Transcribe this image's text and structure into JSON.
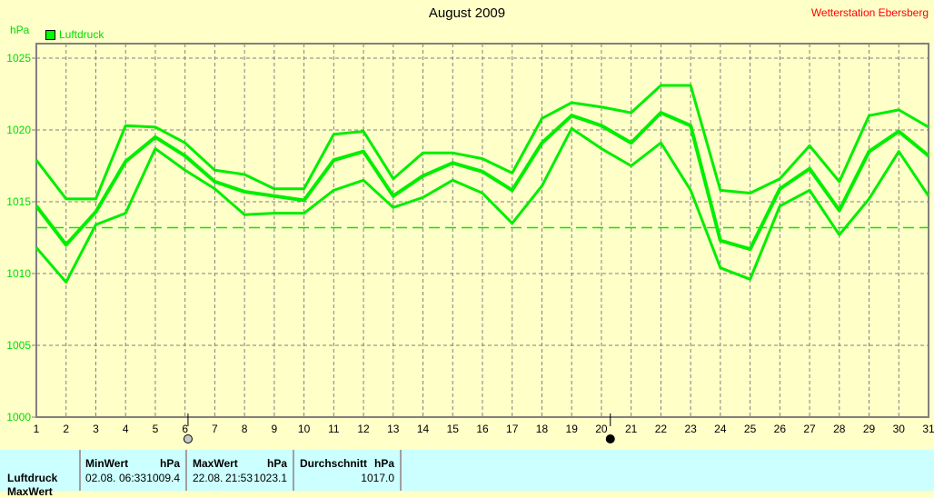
{
  "header": {
    "title": "August 2009",
    "station": "Wetterstation Ebersberg",
    "unit": "hPa",
    "legend": "Luftdruck"
  },
  "chart_data": {
    "type": "line",
    "title": "August 2009",
    "ylabel": "hPa",
    "ylim": [
      1000,
      1025
    ],
    "yticks": [
      "1000",
      "1005",
      "1010",
      "1015",
      "1020",
      "1025"
    ],
    "x": [
      1,
      2,
      3,
      4,
      5,
      6,
      7,
      8,
      9,
      10,
      11,
      12,
      13,
      14,
      15,
      16,
      17,
      18,
      19,
      20,
      21,
      22,
      23,
      24,
      25,
      26,
      27,
      28,
      29,
      30,
      31
    ],
    "series": [
      {
        "name": "Luftdruck max",
        "values": [
          1017.9,
          1015.2,
          1015.2,
          1020.3,
          1020.2,
          1019.1,
          1017.2,
          1016.9,
          1015.9,
          1015.9,
          1019.7,
          1019.9,
          1016.6,
          1018.4,
          1018.4,
          1018.0,
          1017.0,
          1020.8,
          1021.9,
          1021.6,
          1021.2,
          1023.1,
          1023.1,
          1015.8,
          1015.6,
          1016.6,
          1018.9,
          1016.4,
          1021.0,
          1021.4,
          1020.2
        ]
      },
      {
        "name": "Luftdruck avg",
        "values": [
          1014.7,
          1012.0,
          1014.3,
          1017.8,
          1019.5,
          1018.2,
          1016.4,
          1015.7,
          1015.4,
          1015.1,
          1017.9,
          1018.5,
          1015.4,
          1016.8,
          1017.7,
          1017.1,
          1015.8,
          1019.1,
          1021.0,
          1020.3,
          1019.1,
          1021.2,
          1020.3,
          1012.3,
          1011.7,
          1015.9,
          1017.3,
          1014.4,
          1018.5,
          1019.9,
          1018.2
        ]
      },
      {
        "name": "Luftdruck min",
        "values": [
          1011.8,
          1009.4,
          1013.4,
          1014.2,
          1018.7,
          1017.2,
          1015.9,
          1014.1,
          1014.2,
          1014.2,
          1015.8,
          1016.5,
          1014.6,
          1015.3,
          1016.5,
          1015.6,
          1013.5,
          1016.1,
          1020.1,
          1018.7,
          1017.5,
          1019.1,
          1015.8,
          1010.4,
          1009.6,
          1014.7,
          1015.8,
          1012.7,
          1015.2,
          1018.5,
          1015.4
        ]
      }
    ],
    "reference_line": 1013.2,
    "markers": [
      {
        "day": 6.1,
        "kind": "moon-full"
      },
      {
        "day": 20.3,
        "kind": "moon-new"
      }
    ],
    "colors": {
      "line": "#00ee00",
      "grid": "#808080",
      "text": "#00dd00"
    }
  },
  "stats": {
    "row_labels": [
      "Luftdruck",
      "MaxWert"
    ],
    "min": {
      "header": "MinWert",
      "unit": "hPa",
      "date": "02.08.",
      "time": "06:33",
      "value": "1009.4"
    },
    "max": {
      "header": "MaxWert",
      "unit": "hPa",
      "date": "22.08.",
      "time": "21:53",
      "value": "1023.1"
    },
    "avg": {
      "header": "Durchschnitt",
      "unit": "hPa",
      "value": "1017.0"
    }
  }
}
